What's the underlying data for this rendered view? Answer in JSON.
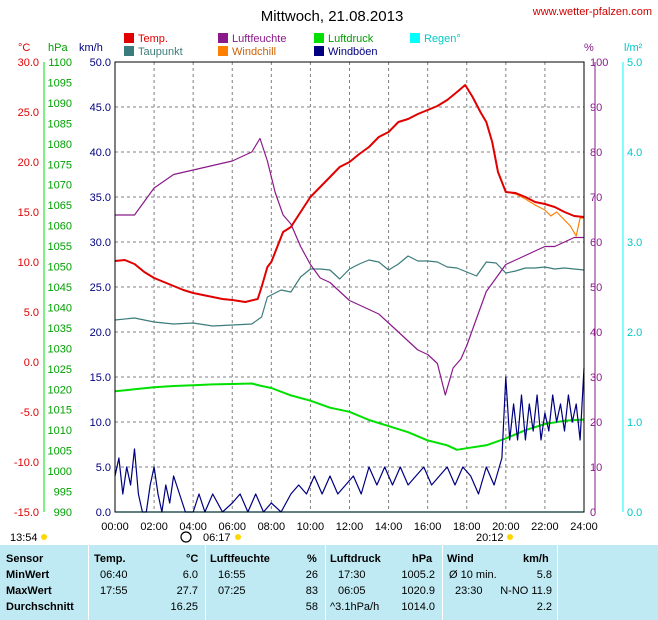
{
  "header": {
    "title": "Mittwoch, 21.08.2013",
    "site": "www.wetter-pfalzen.com"
  },
  "legend": [
    {
      "label": "Temp.",
      "color": "#e00000"
    },
    {
      "label": "Luftfeuchte",
      "color": "#8a1a8a"
    },
    {
      "label": "Luftdruck",
      "color": "#00e000"
    },
    {
      "label": "Regen°",
      "color": "#00ffff"
    },
    {
      "label": "Taupunkt",
      "color": "#3c7c7c"
    },
    {
      "label": "Windchill",
      "color": "#ff8000"
    },
    {
      "label": "Windböen",
      "color": "#000080"
    }
  ],
  "axes": {
    "temp_unit": "°C",
    "pressure_unit": "hPa",
    "wind_unit": "km/h",
    "humidity_unit": "%",
    "rain_unit": "l/m²",
    "temp_ticks": [
      "30.0",
      "25.0",
      "20.0",
      "15.0",
      "10.0",
      "5.0",
      "0.0",
      "-5.0",
      "-10.0",
      "-15.0"
    ],
    "pressure_ticks": [
      "1100",
      "1095",
      "1090",
      "1085",
      "1080",
      "1075",
      "1070",
      "1065",
      "1060",
      "1055",
      "1050",
      "1045",
      "1040",
      "1035",
      "1030",
      "1025",
      "1020",
      "1015",
      "1010",
      "1005",
      "1000",
      "995",
      "990"
    ],
    "wind_ticks": [
      "50.0",
      "45.0",
      "40.0",
      "35.0",
      "30.0",
      "25.0",
      "20.0",
      "15.0",
      "10.0",
      "5.0",
      "0.0"
    ],
    "humidity_ticks": [
      "100",
      "90",
      "80",
      "70",
      "60",
      "50",
      "40",
      "30",
      "20",
      "10",
      "0"
    ],
    "rain_ticks": [
      "5.0",
      "4.0",
      "3.0",
      "2.0",
      "1.0",
      "0.0"
    ],
    "x_ticks": [
      "00:00",
      "02:00",
      "04:00",
      "06:00",
      "08:00",
      "10:00",
      "12:00",
      "14:00",
      "16:00",
      "18:00",
      "20:00",
      "22:00",
      "24:00"
    ]
  },
  "sun": {
    "sunrise_label": "06:17",
    "sunset_label": "20:12",
    "other_label": "13:54"
  },
  "chart_data": {
    "type": "line",
    "title": "Mittwoch, 21.08.2013",
    "x_unit": "hour of day",
    "xlim": [
      0,
      24
    ],
    "series": [
      {
        "name": "Temp.",
        "unit": "°C",
        "axis": "temp",
        "ylim": [
          -15,
          30
        ],
        "points": [
          [
            0,
            10.1
          ],
          [
            0.5,
            10.2
          ],
          [
            1,
            9.8
          ],
          [
            1.5,
            9.0
          ],
          [
            2,
            8.4
          ],
          [
            2.5,
            8.0
          ],
          [
            3,
            7.6
          ],
          [
            3.5,
            7.2
          ],
          [
            4,
            6.9
          ],
          [
            4.5,
            6.7
          ],
          [
            5,
            6.5
          ],
          [
            5.5,
            6.3
          ],
          [
            6,
            6.2
          ],
          [
            6.67,
            6.0
          ],
          [
            7.3,
            6.3
          ],
          [
            7.5,
            7.5
          ],
          [
            7.8,
            9.5
          ],
          [
            8,
            10.0
          ],
          [
            8.3,
            11.5
          ],
          [
            8.6,
            13.0
          ],
          [
            9,
            13.5
          ],
          [
            9.5,
            15.0
          ],
          [
            10,
            16.5
          ],
          [
            10.5,
            17.5
          ],
          [
            11,
            18.5
          ],
          [
            11.5,
            19.5
          ],
          [
            12,
            20.0
          ],
          [
            12.5,
            20.8
          ],
          [
            13,
            21.5
          ],
          [
            13.5,
            22.5
          ],
          [
            14,
            23.0
          ],
          [
            14.5,
            24.0
          ],
          [
            15,
            24.3
          ],
          [
            15.5,
            24.8
          ],
          [
            16,
            25.2
          ],
          [
            16.5,
            25.6
          ],
          [
            17,
            26.2
          ],
          [
            17.5,
            27.0
          ],
          [
            17.92,
            27.7
          ],
          [
            18.3,
            26.5
          ],
          [
            18.7,
            25.0
          ],
          [
            19,
            24.0
          ],
          [
            19.3,
            22.0
          ],
          [
            19.6,
            19.0
          ],
          [
            20,
            17.0
          ],
          [
            20.5,
            16.9
          ],
          [
            21,
            16.5
          ],
          [
            21.5,
            16.0
          ],
          [
            22,
            15.8
          ],
          [
            22.5,
            15.5
          ],
          [
            23,
            15.0
          ],
          [
            23.5,
            14.6
          ],
          [
            24,
            14.5
          ]
        ]
      },
      {
        "name": "Taupunkt",
        "unit": "°C",
        "axis": "temp",
        "ylim": [
          -15,
          30
        ],
        "points": [
          [
            0,
            4.2
          ],
          [
            1,
            4.4
          ],
          [
            2,
            4.0
          ],
          [
            3,
            3.8
          ],
          [
            4,
            3.9
          ],
          [
            5,
            3.6
          ],
          [
            6,
            3.7
          ],
          [
            7,
            3.8
          ],
          [
            7.5,
            4.5
          ],
          [
            7.8,
            6.5
          ],
          [
            8.5,
            7.2
          ],
          [
            9,
            7.0
          ],
          [
            9.5,
            8.5
          ],
          [
            10,
            9.3
          ],
          [
            10.5,
            9.3
          ],
          [
            11,
            9.2
          ],
          [
            11.5,
            8.3
          ],
          [
            12,
            9.3
          ],
          [
            12.5,
            9.8
          ],
          [
            13,
            10.2
          ],
          [
            13.5,
            10.0
          ],
          [
            14,
            9.2
          ],
          [
            14.5,
            9.8
          ],
          [
            15,
            10.6
          ],
          [
            15.5,
            10.1
          ],
          [
            16,
            10.1
          ],
          [
            16.5,
            10.0
          ],
          [
            17,
            9.5
          ],
          [
            17.5,
            9.4
          ],
          [
            18,
            9.0
          ],
          [
            18.5,
            8.6
          ],
          [
            19,
            10.0
          ],
          [
            19.5,
            9.9
          ],
          [
            20,
            8.9
          ],
          [
            20.5,
            9.1
          ],
          [
            21,
            9.4
          ],
          [
            21.5,
            9.4
          ],
          [
            22,
            9.5
          ],
          [
            22.5,
            9.3
          ],
          [
            23,
            9.4
          ],
          [
            23.5,
            9.3
          ],
          [
            24,
            9.2
          ]
        ]
      },
      {
        "name": "Windchill",
        "unit": "°C",
        "axis": "temp",
        "ylim": [
          -15,
          30
        ],
        "points": [
          [
            20,
            17.0
          ],
          [
            20.5,
            16.8
          ],
          [
            21,
            16.3
          ],
          [
            21.5,
            15.7
          ],
          [
            22,
            15.2
          ],
          [
            22.3,
            14.6
          ],
          [
            22.6,
            15.0
          ],
          [
            23,
            14.2
          ],
          [
            23.3,
            13.6
          ],
          [
            23.6,
            12.6
          ],
          [
            23.8,
            14.4
          ],
          [
            24,
            14.4
          ]
        ]
      },
      {
        "name": "Luftfeuchte",
        "unit": "%",
        "axis": "humidity",
        "ylim": [
          0,
          100
        ],
        "points": [
          [
            0,
            66
          ],
          [
            1,
            66
          ],
          [
            1.5,
            69
          ],
          [
            2,
            72
          ],
          [
            3,
            75
          ],
          [
            4,
            76
          ],
          [
            5,
            77
          ],
          [
            6,
            78
          ],
          [
            6.5,
            79
          ],
          [
            7,
            80
          ],
          [
            7.42,
            83
          ],
          [
            7.8,
            78
          ],
          [
            8.2,
            71
          ],
          [
            8.6,
            66
          ],
          [
            9,
            64
          ],
          [
            9.5,
            59
          ],
          [
            10,
            55
          ],
          [
            10.5,
            52
          ],
          [
            11,
            51
          ],
          [
            11.5,
            49
          ],
          [
            12,
            47
          ],
          [
            12.5,
            46
          ],
          [
            13,
            45
          ],
          [
            13.5,
            44
          ],
          [
            14,
            42
          ],
          [
            14.5,
            40
          ],
          [
            15,
            38
          ],
          [
            15.5,
            36
          ],
          [
            16,
            35
          ],
          [
            16.5,
            33
          ],
          [
            16.9,
            26
          ],
          [
            17.3,
            32
          ],
          [
            17.7,
            34
          ],
          [
            18,
            37
          ],
          [
            18.5,
            43
          ],
          [
            19,
            49
          ],
          [
            19.5,
            52
          ],
          [
            20,
            55
          ],
          [
            20.5,
            56
          ],
          [
            21,
            57
          ],
          [
            21.5,
            58
          ],
          [
            22,
            59
          ],
          [
            22.5,
            59
          ],
          [
            23,
            60
          ],
          [
            23.5,
            61
          ],
          [
            24,
            61
          ]
        ]
      },
      {
        "name": "Luftdruck",
        "unit": "hPa",
        "axis": "pressure",
        "ylim": [
          990,
          1100
        ],
        "points": [
          [
            0,
            1019.5
          ],
          [
            1,
            1020
          ],
          [
            2,
            1020.5
          ],
          [
            3,
            1020.8
          ],
          [
            4,
            1021
          ],
          [
            5,
            1021.2
          ],
          [
            6,
            1021.3
          ],
          [
            7,
            1021.4
          ],
          [
            7.42,
            1020.9
          ],
          [
            8,
            1020.3
          ],
          [
            9,
            1018.5
          ],
          [
            10,
            1017.2
          ],
          [
            11,
            1015.5
          ],
          [
            12,
            1014.5
          ],
          [
            13,
            1012.5
          ],
          [
            14,
            1011.0
          ],
          [
            15,
            1009.5
          ],
          [
            16,
            1007.5
          ],
          [
            17,
            1006.3
          ],
          [
            17.5,
            1005.2
          ],
          [
            18,
            1005.6
          ],
          [
            19,
            1006.3
          ],
          [
            20,
            1008.0
          ],
          [
            21,
            1010.0
          ],
          [
            22,
            1011.5
          ],
          [
            23,
            1012.3
          ],
          [
            24,
            1012.6
          ]
        ]
      },
      {
        "name": "Windböen",
        "unit": "km/h",
        "axis": "wind",
        "ylim": [
          0,
          50
        ],
        "points": [
          [
            0,
            4
          ],
          [
            0.2,
            6
          ],
          [
            0.4,
            2
          ],
          [
            0.6,
            5
          ],
          [
            0.8,
            3
          ],
          [
            1,
            7
          ],
          [
            1.2,
            2
          ],
          [
            1.4,
            0
          ],
          [
            1.6,
            0
          ],
          [
            1.8,
            3
          ],
          [
            2,
            5
          ],
          [
            2.2,
            2
          ],
          [
            2.4,
            0
          ],
          [
            2.6,
            3
          ],
          [
            2.8,
            1
          ],
          [
            3,
            4
          ],
          [
            3.3,
            2
          ],
          [
            3.6,
            0
          ],
          [
            4,
            0
          ],
          [
            4.3,
            2
          ],
          [
            4.6,
            0
          ],
          [
            5,
            2
          ],
          [
            5.5,
            0
          ],
          [
            6,
            1
          ],
          [
            6.4,
            2
          ],
          [
            6.8,
            0
          ],
          [
            7.2,
            2
          ],
          [
            7.6,
            0
          ],
          [
            8,
            1
          ],
          [
            8.5,
            0
          ],
          [
            9,
            2
          ],
          [
            9.4,
            3
          ],
          [
            9.8,
            2
          ],
          [
            10.2,
            4
          ],
          [
            10.6,
            2
          ],
          [
            11,
            4
          ],
          [
            11.4,
            2
          ],
          [
            11.8,
            3
          ],
          [
            12.2,
            4
          ],
          [
            12.6,
            2
          ],
          [
            13,
            5
          ],
          [
            13.4,
            3
          ],
          [
            13.8,
            5
          ],
          [
            14.2,
            3
          ],
          [
            14.6,
            5
          ],
          [
            15,
            3
          ],
          [
            15.4,
            4
          ],
          [
            15.8,
            5
          ],
          [
            16.2,
            3
          ],
          [
            16.6,
            4
          ],
          [
            17,
            5
          ],
          [
            17.4,
            3
          ],
          [
            17.8,
            5
          ],
          [
            18.2,
            4
          ],
          [
            18.6,
            2
          ],
          [
            19,
            5
          ],
          [
            19.4,
            3
          ],
          [
            19.8,
            6
          ],
          [
            20,
            15
          ],
          [
            20.2,
            8
          ],
          [
            20.4,
            12
          ],
          [
            20.6,
            8
          ],
          [
            20.8,
            13
          ],
          [
            21,
            8
          ],
          [
            21.2,
            12
          ],
          [
            21.4,
            9
          ],
          [
            21.6,
            13
          ],
          [
            21.8,
            8
          ],
          [
            22,
            11
          ],
          [
            22.2,
            9
          ],
          [
            22.4,
            13
          ],
          [
            22.6,
            10
          ],
          [
            22.8,
            12
          ],
          [
            23,
            9
          ],
          [
            23.2,
            13
          ],
          [
            23.4,
            10
          ],
          [
            23.6,
            12
          ],
          [
            23.8,
            8
          ],
          [
            24,
            16
          ]
        ]
      },
      {
        "name": "Regen°",
        "unit": "l/m²",
        "axis": "rain",
        "ylim": [
          0,
          5
        ],
        "points": [
          [
            0,
            0
          ],
          [
            24,
            0
          ]
        ]
      }
    ]
  },
  "stats": {
    "columns": [
      "Sensor",
      "Temp.",
      "°C",
      "Luftfeuchte",
      "%",
      "Luftdruck",
      "hPa",
      "Wind",
      "km/h"
    ],
    "rows": [
      {
        "label": "MinWert",
        "t_time": "06:40",
        "t_val": "6.0",
        "h_time": "16:55",
        "h_val": "26",
        "p_time": "17:30",
        "p_val": "1005.2",
        "w_time": "Ø 10 min.",
        "w_val": "5.8"
      },
      {
        "label": "MaxWert",
        "t_time": "17:55",
        "t_val": "27.7",
        "h_time": "07:25",
        "h_val": "83",
        "p_time": "06:05",
        "p_val": "1020.9",
        "w_time": "23:30",
        "w_val": "N-NO 11.9"
      },
      {
        "label": "Durchschnitt",
        "t_time": "",
        "t_val": "16.25",
        "h_time": "",
        "h_val": "58",
        "p_time": "^3.1hPa/h",
        "p_val": "1014.0",
        "w_time": "",
        "w_val": "2.2"
      }
    ]
  }
}
